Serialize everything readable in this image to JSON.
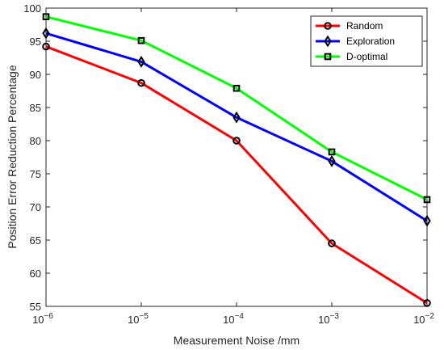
{
  "chart_data": {
    "type": "line",
    "xscale": "log",
    "x": [
      1e-06,
      1e-05,
      0.0001,
      0.001,
      0.01
    ],
    "x_tick_labels": [
      {
        "base": "10",
        "exp": "−6"
      },
      {
        "base": "10",
        "exp": "−5"
      },
      {
        "base": "10",
        "exp": "−4"
      },
      {
        "base": "10",
        "exp": "−3"
      },
      {
        "base": "10",
        "exp": "−2"
      }
    ],
    "y_ticks": [
      "55",
      "60",
      "65",
      "70",
      "75",
      "80",
      "85",
      "90",
      "95",
      "100"
    ],
    "xlabel": "Measurement Noise /mm",
    "ylabel": "Position Error Reduction Percentage",
    "ylim": [
      55,
      100
    ],
    "grid": false,
    "legend_position": "top-right",
    "series": [
      {
        "name": "Random",
        "color": "#ff0000",
        "marker": "circle",
        "values": [
          94.2,
          88.7,
          80.0,
          64.5,
          55.5
        ]
      },
      {
        "name": "Exploration",
        "color": "#0000ff",
        "marker": "diamond",
        "values": [
          96.2,
          91.9,
          83.5,
          76.9,
          67.9
        ]
      },
      {
        "name": "D-optimal",
        "color": "#00ff00",
        "marker": "square",
        "values": [
          98.7,
          95.1,
          87.9,
          78.3,
          71.1
        ]
      }
    ]
  }
}
